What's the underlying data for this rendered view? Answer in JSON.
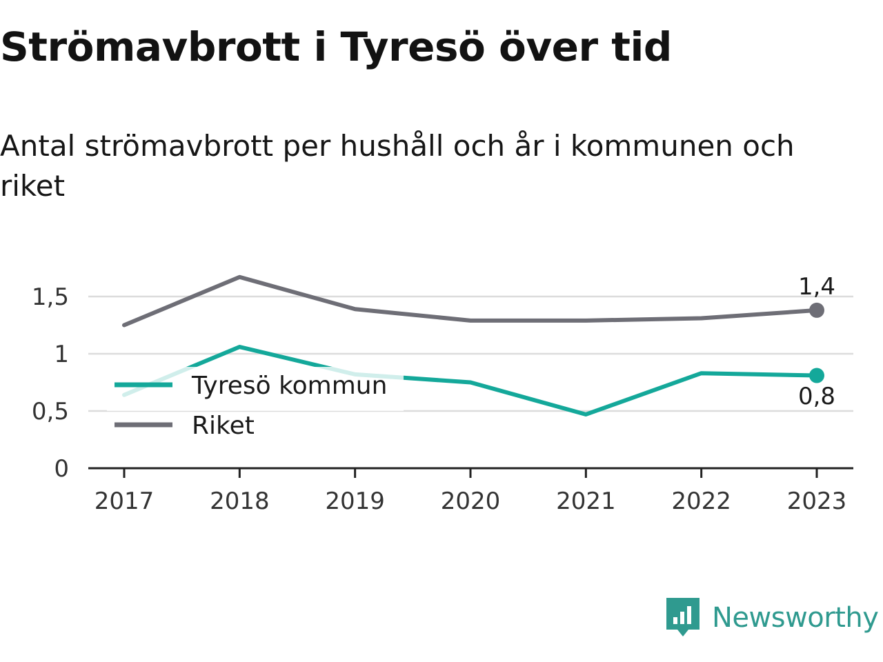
{
  "title": "Strömavbrott i Tyresö över tid",
  "subtitle": "Antal strömavbrott per hushåll och år i kommunen och riket",
  "brand": "Newsworthy",
  "colors": {
    "tyreso": "#14a89a",
    "riket": "#6e6e76",
    "axis": "#222222",
    "grid": "#dcdcdc",
    "brand": "#2f9a8f"
  },
  "chart_data": {
    "type": "line",
    "x": [
      "2017",
      "2018",
      "2019",
      "2020",
      "2021",
      "2022",
      "2023"
    ],
    "series": [
      {
        "name": "Tyresö kommun",
        "values": [
          0.64,
          1.06,
          0.82,
          0.75,
          0.47,
          0.83,
          0.81
        ]
      },
      {
        "name": "Riket",
        "values": [
          1.25,
          1.67,
          1.39,
          1.29,
          1.29,
          1.31,
          1.38
        ]
      }
    ],
    "yticks": [
      "0",
      "0,5",
      "1",
      "1,5"
    ],
    "ylim": [
      0,
      1.5
    ],
    "end_labels": {
      "tyreso": "0,8",
      "riket": "1,4"
    },
    "grid": true,
    "legend_position": "left"
  }
}
